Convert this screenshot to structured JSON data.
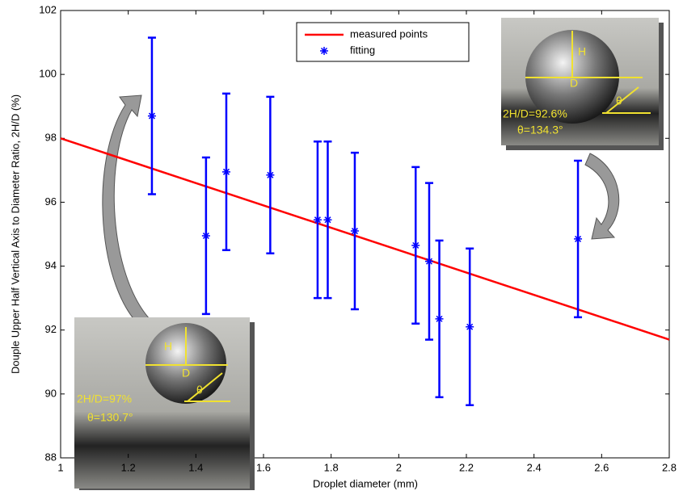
{
  "chart_data": {
    "type": "scatter",
    "x_label": "Droplet diameter (mm)",
    "y_label": "Douple Upper Half Vertical Axis to Diameter Ratio, 2H/D (%)",
    "xlim": [
      1,
      2.8
    ],
    "xticks": [
      1,
      1.2,
      1.4,
      1.6,
      1.8,
      2,
      2.2,
      2.4,
      2.6,
      2.8
    ],
    "ylim": [
      88,
      102
    ],
    "yticks": [
      88,
      90,
      92,
      94,
      96,
      98,
      100,
      102
    ],
    "grid": false,
    "legend": "top",
    "series": [
      {
        "name": "measured points",
        "type": "line",
        "color": "#ff0000",
        "x": [
          1,
          2.8
        ],
        "values": [
          98,
          91.7
        ]
      },
      {
        "name": "fitting",
        "type": "scatter",
        "color": "#0000ff",
        "x": [
          1.27,
          1.43,
          1.49,
          1.62,
          1.76,
          1.79,
          1.87,
          2.05,
          2.09,
          2.12,
          2.21,
          2.53
        ],
        "values": [
          98.7,
          94.95,
          96.95,
          96.85,
          95.45,
          95.45,
          95.1,
          94.65,
          94.15,
          92.35,
          92.1,
          94.85
        ],
        "errors": [
          2.45,
          2.45,
          2.45,
          2.45,
          2.45,
          2.45,
          2.45,
          2.45,
          2.45,
          2.45,
          2.45,
          2.45
        ]
      }
    ],
    "annotations": [
      {
        "h": "H",
        "d": "D",
        "theta": "θ",
        "ratio": "2H/D=92.6%",
        "angle": "θ=134.3°"
      },
      {
        "h": "H",
        "d": "D",
        "theta": "θ",
        "ratio": "2H/D=97%",
        "angle": "θ=130.7°"
      }
    ]
  }
}
